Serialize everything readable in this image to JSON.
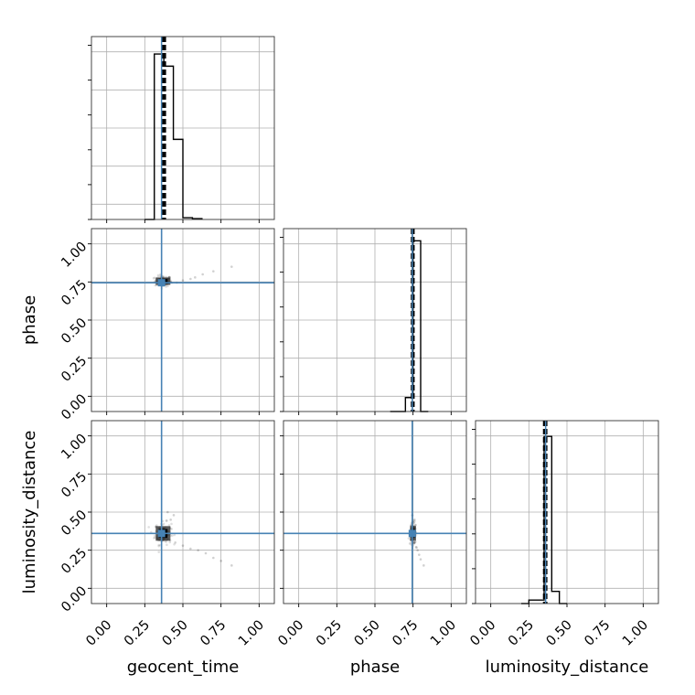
{
  "chart_data": {
    "type": "corner",
    "parameters": [
      "geocent_time",
      "phase",
      "luminosity_distance"
    ],
    "axis_range": [
      -0.1,
      1.1
    ],
    "tick_values": [
      0.0,
      0.25,
      0.5,
      0.75,
      1.0
    ],
    "tick_labels": [
      "0.00",
      "0.25",
      "0.50",
      "0.75",
      "1.00"
    ],
    "grid": true,
    "truth_color": "#4682b4",
    "hist_color": "#000000",
    "truths": {
      "geocent_time": 0.36,
      "phase": 0.745,
      "luminosity_distance": 0.36
    },
    "quantiles": {
      "geocent_time": [
        0.37,
        0.375,
        0.38
      ],
      "phase": [
        0.745,
        0.748,
        0.751
      ],
      "luminosity_distance": [
        0.352,
        0.357,
        0.362
      ]
    },
    "histograms": {
      "geocent_time": {
        "bins": [
          0.25,
          0.3125,
          0.375,
          0.4375,
          0.5,
          0.5625,
          0.625
        ],
        "counts": [
          0,
          0.95,
          0.88,
          0.46,
          0.01,
          0.005,
          0
        ]
      },
      "phase": {
        "bins": [
          0.6,
          0.65,
          0.7,
          0.75,
          0.8,
          0.85
        ],
        "counts": [
          0,
          0,
          0.08,
          0.98,
          0,
          0
        ]
      },
      "luminosity_distance": {
        "bins": [
          0.2,
          0.25,
          0.3,
          0.35,
          0.4,
          0.45,
          0.5
        ],
        "counts": [
          0,
          0.02,
          0.02,
          0.96,
          0.07,
          0,
          0
        ]
      }
    },
    "hist_ylim": [
      0,
      1.05
    ],
    "pairs": [
      {
        "x": "geocent_time",
        "y": "phase",
        "center": [
          0.37,
          0.755
        ],
        "spread": [
          0.03,
          0.02
        ],
        "tail": [
          [
            0.42,
            0.75
          ],
          [
            0.46,
            0.745
          ],
          [
            0.5,
            0.76
          ],
          [
            0.55,
            0.77
          ],
          [
            0.58,
            0.78
          ],
          [
            0.63,
            0.8
          ],
          [
            0.7,
            0.82
          ],
          [
            0.82,
            0.85
          ]
        ]
      },
      {
        "x": "geocent_time",
        "y": "luminosity_distance",
        "center": [
          0.37,
          0.36
        ],
        "spread": [
          0.03,
          0.04
        ],
        "tail": [
          [
            0.4,
            0.32
          ],
          [
            0.45,
            0.3
          ],
          [
            0.5,
            0.28
          ],
          [
            0.55,
            0.26
          ],
          [
            0.6,
            0.25
          ],
          [
            0.65,
            0.23
          ],
          [
            0.7,
            0.2
          ],
          [
            0.75,
            0.18
          ],
          [
            0.82,
            0.15
          ],
          [
            0.42,
            0.45
          ],
          [
            0.44,
            0.48
          ],
          [
            0.4,
            0.5
          ]
        ]
      },
      {
        "x": "phase",
        "y": "luminosity_distance",
        "center": [
          0.75,
          0.36
        ],
        "spread": [
          0.012,
          0.04
        ],
        "tail": [
          [
            0.76,
            0.3
          ],
          [
            0.77,
            0.27
          ],
          [
            0.78,
            0.25
          ],
          [
            0.79,
            0.22
          ],
          [
            0.8,
            0.19
          ],
          [
            0.82,
            0.15
          ],
          [
            0.76,
            0.45
          ],
          [
            0.745,
            0.48
          ]
        ]
      }
    ]
  }
}
